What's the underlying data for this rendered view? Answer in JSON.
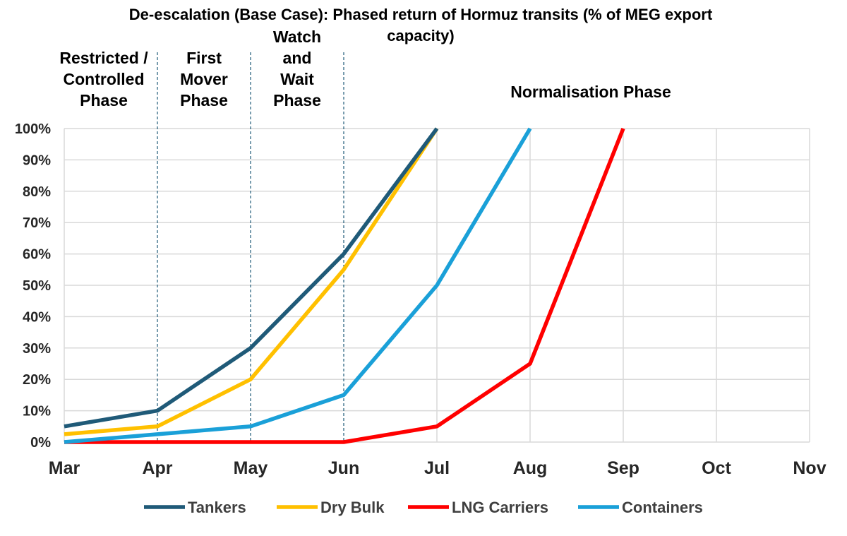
{
  "chart_data": {
    "type": "line",
    "title_lines": [
      "De-escalation (Base Case): Phased return of Hormuz transits (% of MEG export",
      "capacity)"
    ],
    "x": [
      "Mar",
      "Apr",
      "May",
      "Jun",
      "Jul",
      "Aug",
      "Sep",
      "Oct",
      "Nov"
    ],
    "y_ticks": [
      "0%",
      "10%",
      "20%",
      "30%",
      "40%",
      "50%",
      "60%",
      "70%",
      "80%",
      "90%",
      "100%"
    ],
    "ylim": [
      0,
      100
    ],
    "grid": true,
    "legend_position": "bottom",
    "series": [
      {
        "name": "Tankers",
        "color": "#1f5a78",
        "values": [
          5,
          10,
          30,
          60,
          100,
          null,
          null,
          null,
          null
        ]
      },
      {
        "name": "Dry Bulk",
        "color": "#ffc000",
        "values": [
          2.5,
          5,
          20,
          55,
          100,
          null,
          null,
          null,
          null
        ]
      },
      {
        "name": "LNG Carriers",
        "color": "#ff0000",
        "values": [
          0,
          0,
          0,
          0,
          5,
          25,
          100,
          null,
          null
        ]
      },
      {
        "name": "Containers",
        "color": "#1aa0d8",
        "values": [
          0,
          2.5,
          5,
          15,
          50,
          100,
          null,
          null,
          null
        ]
      }
    ],
    "phase_dividers": [
      "Apr",
      "May",
      "Jun"
    ],
    "phases": [
      {
        "lines": [
          "Restricted /",
          "Controlled",
          "Phase"
        ]
      },
      {
        "lines": [
          "First",
          "Mover",
          "Phase"
        ]
      },
      {
        "lines": [
          "Watch",
          "and",
          "Wait",
          "Phase"
        ]
      },
      {
        "lines": [
          "Normalisation Phase"
        ]
      }
    ]
  }
}
